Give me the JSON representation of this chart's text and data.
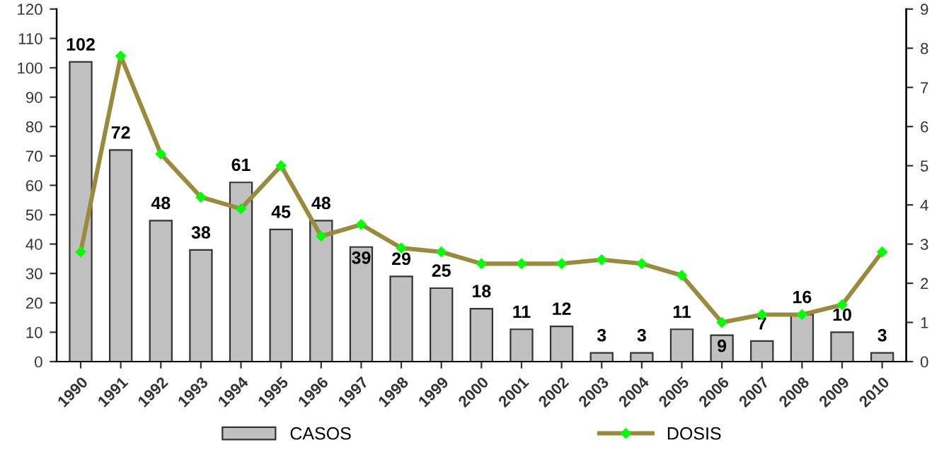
{
  "chart_data": {
    "type": "bar",
    "categories": [
      "1990",
      "1991",
      "1992",
      "1993",
      "1994",
      "1995",
      "1996",
      "1997",
      "1998",
      "1999",
      "2000",
      "2001",
      "2002",
      "2003",
      "2004",
      "2005",
      "2006",
      "2007",
      "2008",
      "2009",
      "2010"
    ],
    "series": [
      {
        "name": "CASOS",
        "color": "#c0c0c0",
        "values": [
          102,
          72,
          48,
          38,
          61,
          45,
          48,
          39,
          29,
          25,
          18,
          11,
          12,
          3,
          3,
          11,
          9,
          7,
          16,
          10,
          3
        ],
        "value_labels": [
          "102",
          "72",
          "48",
          "38",
          "61",
          "45",
          "48",
          "39",
          "29",
          "25",
          "18",
          "11",
          "12",
          "3",
          "3",
          "11",
          "9",
          "7",
          "16",
          "10",
          "3"
        ]
      },
      {
        "name": "DOSIS",
        "type": "line",
        "axis": "y2",
        "color": "#9a8a3c",
        "values": [
          2.8,
          7.8,
          5.3,
          4.2,
          3.9,
          5.0,
          3.2,
          3.5,
          2.9,
          2.8,
          2.5,
          2.5,
          2.5,
          2.6,
          2.5,
          2.2,
          1.0,
          1.2,
          1.2,
          1.45,
          2.8
        ]
      }
    ],
    "ylim": [
      0,
      120
    ],
    "yticks": [
      0,
      10,
      20,
      30,
      40,
      50,
      60,
      70,
      80,
      90,
      100,
      110,
      120
    ],
    "y2lim": [
      0,
      9
    ],
    "y2ticks": [
      0,
      1,
      2,
      3,
      4,
      5,
      6,
      7,
      8,
      9
    ],
    "legend": "bottom",
    "marker": "diamond",
    "grid": false
  }
}
